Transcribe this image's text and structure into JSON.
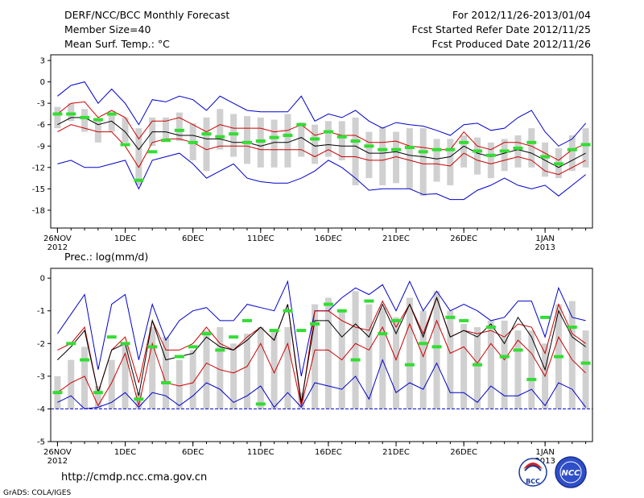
{
  "header": {
    "title": "DERF/NCC/BCC Monthly Forecast",
    "member_size": "Member Size=40",
    "variable": "Mean Surf. Temp.: °C",
    "forecast_period": "For 2012/11/26-2013/01/04",
    "start_date": "Fcst Started Refer Date 2012/11/25",
    "produced_date": "Fcst Produced Date 2012/11/26"
  },
  "footer": {
    "url": "http://cmdp.ncc.cma.gov.cn",
    "credit": "GrADS: COLA/IGES",
    "logo_bcc": "BCC",
    "logo_ncc": "NCC"
  },
  "colors": {
    "envelope": "#0000cc",
    "spread": "#cc0000",
    "mean": "#000000",
    "observed": "#33dd33",
    "box": "#d0d0d0",
    "baseline": "#0000cc"
  },
  "chart_data": [
    {
      "type": "line",
      "title": "Mean Surf. Temp.: °C",
      "x_tick_labels": [
        "26NOV",
        "1DEC",
        "6DEC",
        "11DEC",
        "16DEC",
        "21DEC",
        "26DEC",
        "1JAN"
      ],
      "x_tick_days": [
        0,
        5,
        10,
        15,
        20,
        25,
        30,
        36
      ],
      "year_labels": [
        {
          "day": 0,
          "label": "2012"
        },
        {
          "day": 36,
          "label": "2013"
        }
      ],
      "y_ticks": [
        3,
        0,
        -3,
        -6,
        -9,
        -12,
        -15,
        -18
      ],
      "ylim": [
        -20.5,
        3.8
      ],
      "xlim": [
        -0.5,
        39.5
      ],
      "days": [
        0,
        1,
        2,
        3,
        4,
        5,
        6,
        7,
        8,
        9,
        10,
        11,
        12,
        13,
        14,
        15,
        16,
        17,
        18,
        19,
        20,
        21,
        22,
        23,
        24,
        25,
        26,
        27,
        28,
        29,
        30,
        31,
        32,
        33,
        34,
        35,
        36,
        37,
        38,
        39
      ],
      "series": [
        {
          "name": "max",
          "values": [
            -2,
            -0.5,
            0,
            -3,
            -1,
            -3,
            -6,
            -2.5,
            -2.8,
            -2,
            -2.5,
            -4,
            -2,
            -3,
            -4,
            -4.2,
            -4.2,
            -4.2,
            -2,
            -5.5,
            -4.5,
            -5,
            -4,
            -5.5,
            -6.5,
            -5.7,
            -6,
            -6.2,
            -6.8,
            -7.5,
            -6,
            -5.8,
            -6.8,
            -6.5,
            -5,
            -4,
            -7,
            -9,
            -8,
            -5.8
          ]
        },
        {
          "name": "upper",
          "values": [
            -4.5,
            -3,
            -2.8,
            -5,
            -4,
            -5,
            -8,
            -5.5,
            -5.5,
            -5,
            -6,
            -7,
            -6,
            -6.5,
            -6.5,
            -6.5,
            -7,
            -6.8,
            -6,
            -7.5,
            -7,
            -7.5,
            -7.5,
            -8.5,
            -8.5,
            -8.3,
            -9,
            -9.2,
            -9.5,
            -9.5,
            -7,
            -9,
            -9.5,
            -8.5,
            -8.5,
            -9,
            -10,
            -11,
            -9.5,
            -8.7
          ]
        },
        {
          "name": "mean",
          "values": [
            -6,
            -5,
            -5,
            -6,
            -5.5,
            -7,
            -9.5,
            -7,
            -7,
            -7.5,
            -7.5,
            -8,
            -8,
            -8.5,
            -8.5,
            -9,
            -8.5,
            -8.5,
            -7.8,
            -9,
            -8.8,
            -9,
            -9,
            -10,
            -10,
            -9.8,
            -10.3,
            -10.5,
            -10.8,
            -10.5,
            -9,
            -10,
            -10.5,
            -10,
            -9.5,
            -10,
            -11,
            -12,
            -11,
            -10
          ]
        },
        {
          "name": "lower",
          "values": [
            -7,
            -6,
            -6.5,
            -7,
            -7,
            -9,
            -12,
            -8.5,
            -8,
            -8,
            -8.5,
            -9.5,
            -9,
            -9,
            -9,
            -9.5,
            -9.5,
            -9.5,
            -9.5,
            -10.5,
            -9.5,
            -10.5,
            -10.5,
            -11,
            -11,
            -10.5,
            -11,
            -11.5,
            -11.5,
            -11.8,
            -10,
            -11,
            -11.5,
            -11,
            -10.5,
            -11,
            -12.5,
            -13,
            -12,
            -11
          ]
        },
        {
          "name": "min",
          "values": [
            -11.5,
            -11,
            -12,
            -12,
            -11.5,
            -11,
            -15,
            -11,
            -10.5,
            -10,
            -11.5,
            -13.5,
            -12.5,
            -11.5,
            -13.5,
            -14,
            -14.2,
            -14.2,
            -13.5,
            -12.5,
            -11,
            -12,
            -13.5,
            -15.2,
            -15,
            -15,
            -15,
            -15.8,
            -15.7,
            -16.5,
            -16.5,
            -15.2,
            -14.5,
            -13.5,
            -14.5,
            -15,
            -14.5,
            -16,
            -14.5,
            -13
          ]
        },
        {
          "name": "box_top",
          "values": [
            -3.5,
            -3,
            -3.8,
            -5.5,
            -4.5,
            -5,
            -6.5,
            -5,
            -5,
            -4.3,
            -5.8,
            -5,
            -3.8,
            -4.5,
            -4.8,
            -5,
            -5.3,
            -4.5,
            -5.7,
            -6,
            -5.5,
            -5.5,
            -5,
            -7,
            -6.3,
            -7,
            -6.5,
            -6.5,
            -8,
            -8,
            -7.5,
            -7.8,
            -8.5,
            -8,
            -7.5,
            -6.5,
            -8.5,
            -9.3,
            -7.5,
            -6.5
          ]
        },
        {
          "name": "box_bottom",
          "values": [
            -6.5,
            -5.5,
            -7,
            -8.5,
            -7,
            -8.5,
            -14.5,
            -9,
            -8,
            -8.3,
            -11,
            -12.5,
            -9.5,
            -10.5,
            -11.5,
            -12,
            -12,
            -12,
            -10.5,
            -11.5,
            -10.5,
            -11,
            -14.5,
            -13.5,
            -14.5,
            -14.2,
            -15,
            -16,
            -14,
            -14.5,
            -12,
            -13,
            -13.5,
            -12.5,
            -12,
            -12,
            -13.3,
            -13.5,
            -12.5,
            -12
          ]
        },
        {
          "name": "observed",
          "values": [
            -4.5,
            -4.5,
            -5,
            -5.3,
            -4.5,
            -8.8,
            -13.8,
            -9.8,
            -8.2,
            -6.8,
            -8.5,
            -7.3,
            -7.7,
            -7.3,
            -8.5,
            -8.3,
            -7.8,
            -7.5,
            -6,
            -8,
            -7,
            -7.7,
            -8.3,
            -9,
            -9.5,
            -9.5,
            -9.2,
            -9.8,
            -9.5,
            -9.5,
            -8.5,
            -9.7,
            -10.3,
            -9.7,
            -9.3,
            -8.5,
            -10.5,
            -11.5,
            -9.5,
            -8.8
          ]
        }
      ]
    },
    {
      "type": "line",
      "title": "Prec.: log(mm/d)",
      "x_tick_labels": [
        "26NOV",
        "1DEC",
        "6DEC",
        "11DEC",
        "16DEC",
        "21DEC",
        "26DEC",
        "1JAN"
      ],
      "x_tick_days": [
        0,
        5,
        10,
        15,
        20,
        25,
        30,
        36
      ],
      "year_labels": [
        {
          "day": 0,
          "label": "2012"
        },
        {
          "day": 36,
          "label": "2013"
        }
      ],
      "y_ticks": [
        0,
        -1,
        -2,
        -3,
        -4,
        -5
      ],
      "ylim": [
        -5,
        0.3
      ],
      "xlim": [
        -0.5,
        39.5
      ],
      "baseline": -4,
      "days": [
        0,
        1,
        2,
        3,
        4,
        5,
        6,
        7,
        8,
        9,
        10,
        11,
        12,
        13,
        14,
        15,
        16,
        17,
        18,
        19,
        20,
        21,
        22,
        23,
        24,
        25,
        26,
        27,
        28,
        29,
        30,
        31,
        32,
        33,
        34,
        35,
        36,
        37,
        38,
        39
      ],
      "series": [
        {
          "name": "max",
          "values": [
            -1.7,
            -1.1,
            -0.5,
            -2.8,
            -0.8,
            -0.5,
            -2.5,
            -0.8,
            -1.9,
            -1.3,
            -1,
            -0.9,
            -1.3,
            -1.3,
            -0.8,
            -0.9,
            -1,
            -0.1,
            -3,
            -1,
            -1,
            -0.6,
            -0.3,
            -0.5,
            -0.2,
            -1,
            -0.1,
            -1,
            -0.4,
            -1,
            -0.8,
            -1,
            -1.3,
            -1.2,
            -0.7,
            -0.7,
            -1.8,
            -0.3,
            -1.2,
            -1.3
          ]
        },
        {
          "name": "upper",
          "values": [
            -2.2,
            -2,
            -1.5,
            -3.5,
            -2.2,
            -1.8,
            -3.2,
            -1.3,
            -2.2,
            -2.2,
            -2,
            -1.5,
            -2,
            -2.2,
            -1.8,
            -1.5,
            -1.9,
            -0.8,
            -3.9,
            -1,
            -1,
            -1.3,
            -1.5,
            -1.6,
            -0.7,
            -1.5,
            -0.8,
            -1.7,
            -0.6,
            -1.8,
            -1.6,
            -1.7,
            -1.6,
            -1.8,
            -1.4,
            -1.5,
            -2.3,
            -0.8,
            -1.7,
            -2
          ]
        },
        {
          "name": "mean",
          "values": [
            -2.5,
            -2.1,
            -1.6,
            -3.5,
            -2.2,
            -2,
            -3.6,
            -1.3,
            -2.5,
            -2.4,
            -2.3,
            -1.8,
            -2.1,
            -2.2,
            -1.9,
            -1.5,
            -1.9,
            -0.8,
            -3.8,
            -1.3,
            -1.3,
            -1.8,
            -1.4,
            -1.8,
            -0.8,
            -1.7,
            -0.8,
            -1.8,
            -0.6,
            -1.8,
            -1.6,
            -1.8,
            -1.4,
            -2,
            -1.2,
            -1.8,
            -2.8,
            -1,
            -1.8,
            -2.1
          ]
        },
        {
          "name": "lower",
          "values": [
            -3.5,
            -3.2,
            -3,
            -3.9,
            -3.2,
            -2.3,
            -3.9,
            -2,
            -3.2,
            -3.3,
            -3.2,
            -2.6,
            -2.8,
            -2.9,
            -2.7,
            -2,
            -2.9,
            -2,
            -3.9,
            -2.2,
            -2.2,
            -2.5,
            -2,
            -2.2,
            -1.5,
            -2.5,
            -1.4,
            -2.4,
            -1.3,
            -2.3,
            -2.1,
            -2.6,
            -2,
            -2.5,
            -1.9,
            -2.3,
            -3,
            -1.8,
            -2.5,
            -2.9
          ]
        },
        {
          "name": "min",
          "values": [
            -3.8,
            -3.6,
            -4,
            -3.95,
            -3.8,
            -3.5,
            -3.95,
            -3.5,
            -3.6,
            -3.9,
            -3.6,
            -3.2,
            -3.4,
            -3.8,
            -3.6,
            -3.3,
            -3.95,
            -3.5,
            -3.95,
            -3.2,
            -3.3,
            -3.4,
            -3,
            -3.7,
            -2.5,
            -3.5,
            -3.2,
            -3.4,
            -2.6,
            -3.5,
            -3.5,
            -3.8,
            -3.3,
            -3.6,
            -3.6,
            -3.4,
            -3.9,
            -3.2,
            -3.4,
            -3.95
          ]
        },
        {
          "name": "box_top",
          "values": [
            -3,
            -2.5,
            -2.1,
            -3.3,
            -2.5,
            -2,
            -3.5,
            -1.5,
            -1.8,
            -2.5,
            -2.2,
            -1.6,
            -1.5,
            -2,
            -1.7,
            -1.5,
            -1.6,
            -1.5,
            -3.5,
            -0.8,
            -0.6,
            -1,
            -0.4,
            -0.8,
            -0.9,
            -1.2,
            -0.6,
            -1,
            -0.4,
            -1,
            -1.4,
            -1.5,
            -1.3,
            -1.3,
            -1.6,
            -1.6,
            -2,
            -0.8,
            -0.7,
            -1.6
          ]
        },
        {
          "name": "box_bottom",
          "values": [
            -4,
            -4,
            -4,
            -4,
            -4,
            -4,
            -4,
            -4,
            -4,
            -4,
            -4,
            -4,
            -4,
            -4,
            -4,
            -4,
            -4,
            -4,
            -4,
            -4,
            -4,
            -4,
            -4,
            -4,
            -4,
            -4,
            -4,
            -4,
            -4,
            -4,
            -4,
            -4,
            -4,
            -4,
            -4,
            -4,
            -4,
            -4,
            -4,
            -4
          ]
        },
        {
          "name": "observed",
          "values": [
            -3.5,
            -2,
            -2.5,
            -3.5,
            -1.8,
            -2,
            -3.7,
            -2.1,
            -3.2,
            -2.4,
            -2.1,
            -1.7,
            -2.2,
            -1.8,
            -1.3,
            -3.85,
            -1.6,
            -1,
            -1.6,
            -1.4,
            -0.8,
            -1,
            -2.5,
            -0.7,
            -1.7,
            -1.3,
            -2.65,
            -2,
            -2.1,
            -1.2,
            -1.3,
            -2.65,
            -1.5,
            -2.4,
            -2.2,
            -3.1,
            -1.2,
            -2.4,
            -1.5,
            -2.6
          ]
        }
      ]
    }
  ]
}
